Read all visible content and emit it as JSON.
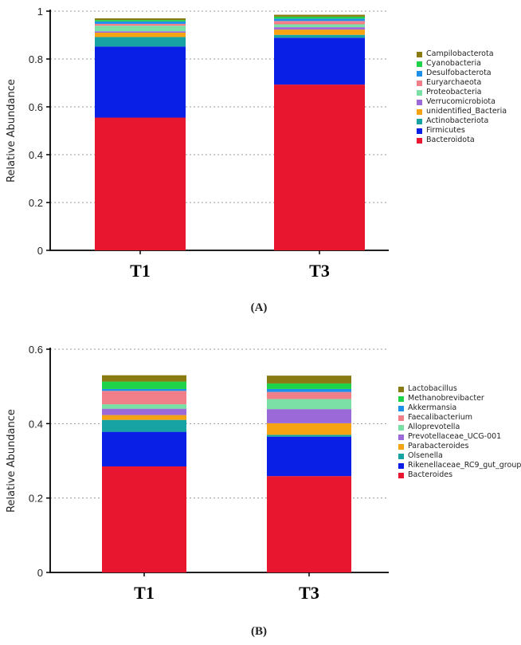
{
  "chart_data": [
    {
      "type": "bar",
      "stacked": true,
      "ylabel": "Relative Abundance",
      "ylim": [
        0,
        1
      ],
      "yticks": [
        "0",
        "0.2",
        "0.4",
        "0.6",
        "0.8",
        "1"
      ],
      "categories": [
        "T1",
        "T3"
      ],
      "legend_position": "right",
      "caption": "(A)",
      "series": [
        {
          "name": "Bacteroidota",
          "color": "#e8162e",
          "values": [
            0.555,
            0.693
          ]
        },
        {
          "name": "Firmicutes",
          "color": "#0a1fe6",
          "values": [
            0.297,
            0.196
          ]
        },
        {
          "name": "Actinobacteriota",
          "color": "#17a3a3",
          "values": [
            0.04,
            0.012
          ]
        },
        {
          "name": "unidentified_Bacteria",
          "color": "#f5a312",
          "values": [
            0.018,
            0.022
          ]
        },
        {
          "name": "Verrucomicrobiota",
          "color": "#9b6ad8",
          "values": [
            0.006,
            0.01
          ]
        },
        {
          "name": "Proteobacteria",
          "color": "#7be0a6",
          "values": [
            0.023,
            0.012
          ]
        },
        {
          "name": "Euryarchaeota",
          "color": "#f07f8a",
          "values": [
            0.008,
            0.014
          ]
        },
        {
          "name": "Desulfobacterota",
          "color": "#1e8fe8",
          "values": [
            0.01,
            0.01
          ]
        },
        {
          "name": "Cyanobacteria",
          "color": "#1ed24a",
          "values": [
            0.006,
            0.008
          ]
        },
        {
          "name": "Campilobacterota",
          "color": "#8a7a12",
          "values": [
            0.007,
            0.008
          ]
        }
      ]
    },
    {
      "type": "bar",
      "stacked": true,
      "ylabel": "Relative Abundance",
      "ylim": [
        0,
        0.6
      ],
      "yticks": [
        "0",
        "0.2",
        "0.4",
        "0.6"
      ],
      "categories": [
        "T1",
        "T3"
      ],
      "legend_position": "right",
      "caption": "(B)",
      "series": [
        {
          "name": "Bacteroides",
          "color": "#e8162e",
          "values": [
            0.285,
            0.259
          ]
        },
        {
          "name": "Rikenellaceae_RC9_gut_group",
          "color": "#0a1fe6",
          "values": [
            0.093,
            0.106
          ]
        },
        {
          "name": "Olsenella",
          "color": "#17a3a3",
          "values": [
            0.032,
            0.005
          ]
        },
        {
          "name": "Parabacteroides",
          "color": "#f5a312",
          "values": [
            0.013,
            0.031
          ]
        },
        {
          "name": "Prevotellaceae_UCG-001",
          "color": "#9b6ad8",
          "values": [
            0.017,
            0.038
          ]
        },
        {
          "name": "Alloprevotella",
          "color": "#7be0a6",
          "values": [
            0.012,
            0.027
          ]
        },
        {
          "name": "Faecalibacterium",
          "color": "#f07f8a",
          "values": [
            0.036,
            0.019
          ]
        },
        {
          "name": "Akkermansia",
          "color": "#1e8fe8",
          "values": [
            0.005,
            0.008
          ]
        },
        {
          "name": "Methanobrevibacter",
          "color": "#1ed24a",
          "values": [
            0.02,
            0.015
          ]
        },
        {
          "name": "Lactobacillus",
          "color": "#8a7a12",
          "values": [
            0.017,
            0.021
          ]
        }
      ]
    }
  ]
}
